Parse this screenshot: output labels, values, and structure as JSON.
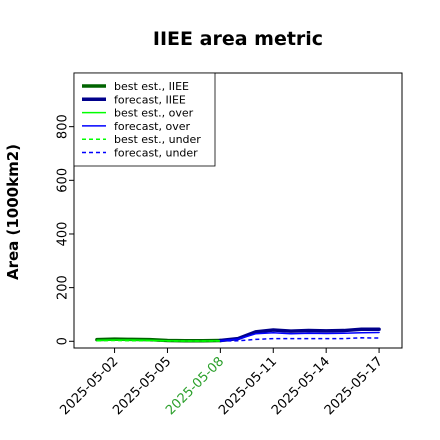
{
  "chart_data": {
    "type": "line",
    "title": "IIEE area metric",
    "xlabel": "",
    "ylabel": "Area (1000km2)",
    "x": [
      "2025-05-01",
      "2025-05-02",
      "2025-05-03",
      "2025-05-04",
      "2025-05-05",
      "2025-05-06",
      "2025-05-07",
      "2025-05-08",
      "2025-05-09",
      "2025-05-10",
      "2025-05-11",
      "2025-05-12",
      "2025-05-13",
      "2025-05-14",
      "2025-05-15",
      "2025-05-16",
      "2025-05-17"
    ],
    "xticks": [
      "2025-05-02",
      "2025-05-05",
      "2025-05-08",
      "2025-05-11",
      "2025-05-14",
      "2025-05-17"
    ],
    "xtick_colors": [
      "#000000",
      "#000000",
      "#2ca02c",
      "#000000",
      "#000000",
      "#000000"
    ],
    "yticks": [
      0,
      200,
      400,
      600,
      800
    ],
    "ylim": [
      -25,
      1000
    ],
    "grid": false,
    "legend_position": "top-left",
    "series": [
      {
        "name": "best est., IIEE",
        "color": "#006400",
        "style": "solid",
        "width": 3.5,
        "values": [
          6,
          8,
          7,
          6,
          3,
          2,
          2,
          3,
          null,
          null,
          null,
          null,
          null,
          null,
          null,
          null,
          null
        ]
      },
      {
        "name": "forecast, IIEE",
        "color": "#00008b",
        "style": "solid",
        "width": 3.5,
        "values": [
          null,
          null,
          null,
          null,
          null,
          null,
          null,
          3,
          10,
          35,
          42,
          38,
          40,
          39,
          40,
          45,
          45
        ]
      },
      {
        "name": "best est., over",
        "color": "#00ff00",
        "style": "solid",
        "width": 1.5,
        "values": [
          4,
          5,
          5,
          4,
          2,
          1,
          1,
          2,
          null,
          null,
          null,
          null,
          null,
          null,
          null,
          null,
          null
        ]
      },
      {
        "name": "forecast, over",
        "color": "#0000ff",
        "style": "solid",
        "width": 1.5,
        "values": [
          null,
          null,
          null,
          null,
          null,
          null,
          null,
          2,
          8,
          28,
          32,
          28,
          30,
          29,
          30,
          32,
          33
        ]
      },
      {
        "name": "best est., under",
        "color": "#00ff00",
        "style": "dashed",
        "width": 1.5,
        "values": [
          2,
          3,
          2,
          2,
          1,
          1,
          1,
          1,
          null,
          null,
          null,
          null,
          null,
          null,
          null,
          null,
          null
        ]
      },
      {
        "name": "forecast, under",
        "color": "#0000ff",
        "style": "dashed",
        "width": 1.5,
        "values": [
          null,
          null,
          null,
          null,
          null,
          null,
          null,
          1,
          2,
          7,
          10,
          10,
          10,
          10,
          10,
          13,
          12
        ]
      }
    ]
  }
}
